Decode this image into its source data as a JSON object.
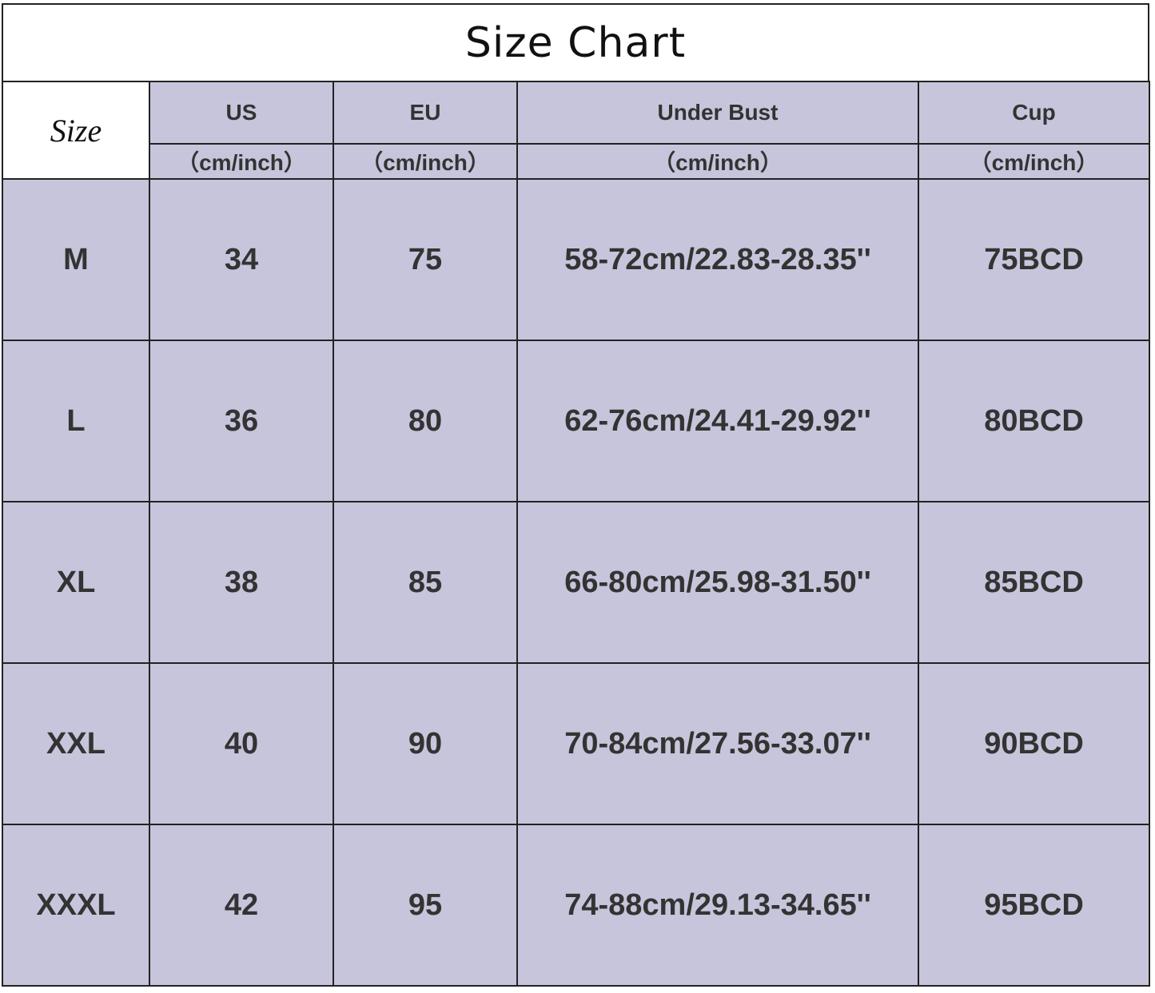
{
  "title": "Size Chart",
  "fill_color": "#c6c5db",
  "header": {
    "size": "Size",
    "columns": [
      "US",
      "EU",
      "Under Bust",
      "Cup"
    ],
    "unit": "（cm/inch）"
  },
  "rows": [
    {
      "size": "M",
      "us": "34",
      "eu": "75",
      "under_bust": "58-72cm/22.83-28.35''",
      "cup": "75BCD"
    },
    {
      "size": "L",
      "us": "36",
      "eu": "80",
      "under_bust": "62-76cm/24.41-29.92''",
      "cup": "80BCD"
    },
    {
      "size": "XL",
      "us": "38",
      "eu": "85",
      "under_bust": "66-80cm/25.98-31.50''",
      "cup": "85BCD"
    },
    {
      "size": "XXL",
      "us": "40",
      "eu": "90",
      "under_bust": "70-84cm/27.56-33.07''",
      "cup": "90BCD"
    },
    {
      "size": "XXXL",
      "us": "42",
      "eu": "95",
      "under_bust": "74-88cm/29.13-34.65''",
      "cup": "95BCD"
    }
  ]
}
